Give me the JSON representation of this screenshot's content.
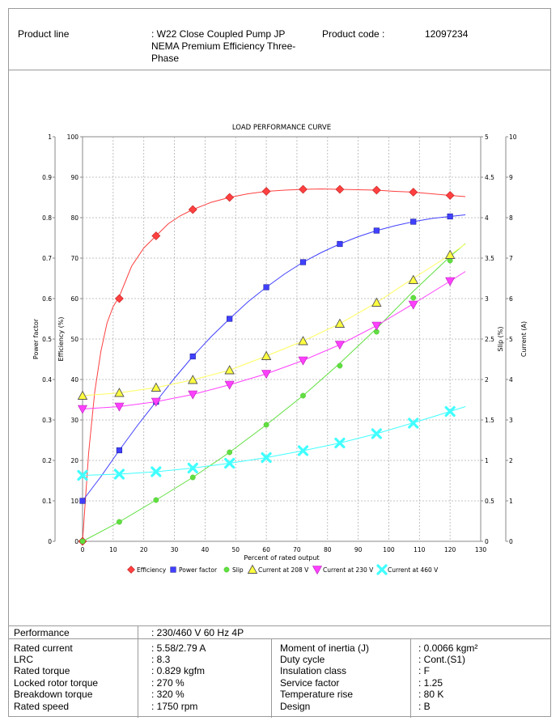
{
  "header": {
    "product_line_label": "Product line",
    "product_line_value_1": ": W22 Close Coupled Pump JP",
    "product_line_value_2": "NEMA Premium Efficiency Three-",
    "product_line_value_3": "Phase",
    "product_code_label": "Product code :",
    "product_code_value": "12097234"
  },
  "chart_data": {
    "type": "line",
    "title": "LOAD PERFORMANCE CURVE",
    "xlabel": "Percent of rated output",
    "xlim": [
      0,
      130
    ],
    "x_ticks": [
      "0",
      "10",
      "20",
      "30",
      "40",
      "50",
      "60",
      "70",
      "80",
      "90",
      "100",
      "110",
      "120",
      "130"
    ],
    "axes": {
      "power_factor": {
        "label": "Power factor",
        "range": [
          0,
          1
        ],
        "ticks": [
          "0",
          "0.1",
          "0.2",
          "0.3",
          "0.4",
          "0.5",
          "0.6",
          "0.7",
          "0.8",
          "0.9",
          "1"
        ]
      },
      "efficiency": {
        "label": "Efficiency (%)",
        "range": [
          0,
          100
        ],
        "ticks": [
          "0",
          "10",
          "20",
          "30",
          "40",
          "50",
          "60",
          "70",
          "80",
          "90",
          "100"
        ]
      },
      "slip": {
        "label": "Slip (%)",
        "range": [
          0,
          5
        ],
        "ticks": [
          "0",
          "0.5",
          "1",
          "1.5",
          "2",
          "2.5",
          "3",
          "3.5",
          "4",
          "4.5",
          "5"
        ]
      },
      "current": {
        "label": "Current (A)",
        "range": [
          0,
          10
        ],
        "ticks": [
          "0",
          "1",
          "2",
          "3",
          "4",
          "5",
          "6",
          "7",
          "8",
          "9",
          "10"
        ]
      }
    },
    "grid": true,
    "legend_position": "bottom",
    "series": [
      {
        "name": "Efficiency",
        "axis": "efficiency",
        "marker": "diamond",
        "color": "#ff4040",
        "x": [
          0,
          12,
          24,
          36,
          48,
          60,
          72,
          84,
          96,
          108,
          120
        ],
        "y": [
          0,
          60,
          75.5,
          82,
          85,
          86.5,
          87,
          87,
          86.8,
          86.3,
          85.5
        ],
        "line_x": [
          0,
          2,
          4,
          6,
          8,
          10,
          12,
          16,
          20,
          24,
          28,
          32,
          36,
          42,
          48,
          54,
          60,
          66,
          72,
          78,
          84,
          90,
          96,
          102,
          108,
          114,
          120,
          125
        ],
        "line_y": [
          0,
          22,
          37,
          47,
          54,
          58,
          60.5,
          68,
          72.5,
          75.5,
          78.5,
          80.5,
          82,
          83.8,
          85,
          85.9,
          86.5,
          86.8,
          87,
          87.1,
          87,
          86.9,
          86.8,
          86.5,
          86.3,
          85.9,
          85.5,
          85.2
        ]
      },
      {
        "name": "Power factor",
        "axis": "power_factor",
        "marker": "square",
        "color": "#4040ff",
        "x": [
          0,
          12,
          24,
          36,
          48,
          60,
          72,
          84,
          96,
          108,
          120
        ],
        "y": [
          0.1,
          0.225,
          0.345,
          0.457,
          0.55,
          0.628,
          0.69,
          0.735,
          0.768,
          0.79,
          0.803
        ],
        "line_x": [
          0,
          6,
          12,
          18,
          24,
          30,
          36,
          42,
          48,
          54,
          60,
          66,
          72,
          78,
          84,
          90,
          96,
          102,
          108,
          114,
          120,
          125
        ],
        "line_y": [
          0.1,
          0.16,
          0.225,
          0.287,
          0.345,
          0.403,
          0.457,
          0.506,
          0.55,
          0.592,
          0.628,
          0.661,
          0.69,
          0.714,
          0.735,
          0.753,
          0.768,
          0.78,
          0.79,
          0.798,
          0.803,
          0.807
        ]
      },
      {
        "name": "Slip",
        "axis": "slip",
        "marker": "circle",
        "color": "#60e040",
        "x": [
          0,
          12,
          24,
          36,
          48,
          60,
          72,
          84,
          96,
          108,
          120
        ],
        "y": [
          0,
          0.24,
          0.51,
          0.79,
          1.1,
          1.44,
          1.8,
          2.17,
          2.59,
          3.01,
          3.47
        ],
        "line_x": [
          0,
          12,
          24,
          36,
          48,
          60,
          72,
          84,
          96,
          108,
          120,
          125
        ],
        "line_y": [
          0,
          0.24,
          0.51,
          0.79,
          1.1,
          1.44,
          1.8,
          2.2,
          2.63,
          3.09,
          3.52,
          3.68
        ]
      },
      {
        "name": "Current at 208 V",
        "axis": "current",
        "marker": "triangle-up",
        "color": "#ffff40",
        "x": [
          0,
          12,
          24,
          36,
          48,
          60,
          72,
          84,
          96,
          108,
          120
        ],
        "y": [
          3.6,
          3.67,
          3.8,
          3.99,
          4.23,
          4.58,
          4.95,
          5.38,
          5.9,
          6.46,
          7.08
        ],
        "line_x": [
          0,
          12,
          24,
          36,
          48,
          60,
          72,
          84,
          96,
          108,
          120,
          125
        ],
        "line_y": [
          3.6,
          3.67,
          3.8,
          3.99,
          4.23,
          4.58,
          4.95,
          5.38,
          5.9,
          6.5,
          7.08,
          7.35
        ]
      },
      {
        "name": "Current at 230 V",
        "axis": "current",
        "marker": "triangle-down",
        "color": "#ff40ff",
        "x": [
          0,
          12,
          24,
          36,
          48,
          60,
          72,
          84,
          96,
          108,
          120
        ],
        "y": [
          3.27,
          3.33,
          3.45,
          3.63,
          3.87,
          4.14,
          4.47,
          4.86,
          5.33,
          5.85,
          6.43
        ],
        "line_x": [
          0,
          12,
          24,
          36,
          48,
          60,
          72,
          84,
          96,
          108,
          120,
          125
        ],
        "line_y": [
          3.27,
          3.33,
          3.45,
          3.63,
          3.87,
          4.14,
          4.47,
          4.86,
          5.33,
          5.87,
          6.43,
          6.67
        ]
      },
      {
        "name": "Current at 460 V",
        "axis": "current",
        "marker": "x",
        "color": "#40ffff",
        "x": [
          0,
          12,
          24,
          36,
          48,
          60,
          72,
          84,
          96,
          108,
          120
        ],
        "y": [
          1.63,
          1.66,
          1.72,
          1.81,
          1.93,
          2.07,
          2.24,
          2.43,
          2.66,
          2.92,
          3.21
        ],
        "line_x": [
          0,
          12,
          24,
          36,
          48,
          60,
          72,
          84,
          96,
          108,
          120,
          125
        ],
        "line_y": [
          1.63,
          1.66,
          1.72,
          1.81,
          1.93,
          2.07,
          2.24,
          2.43,
          2.66,
          2.93,
          3.21,
          3.33
        ]
      }
    ]
  },
  "performance": {
    "label": "Performance",
    "value": ": 230/460 V 60 Hz 4P",
    "left": [
      {
        "label": "Rated current",
        "value": ": 5.58/2.79 A"
      },
      {
        "label": "LRC",
        "value": ": 8.3"
      },
      {
        "label": "Rated torque",
        "value": ": 0.829 kgfm"
      },
      {
        "label": "Locked rotor torque",
        "value": ": 270 %"
      },
      {
        "label": "Breakdown torque",
        "value": ": 320 %"
      },
      {
        "label": "Rated speed",
        "value": ": 1750 rpm"
      }
    ],
    "right": [
      {
        "label": "Moment of inertia (J)",
        "value": ": 0.0066 kgm²"
      },
      {
        "label": "Duty cycle",
        "value": ": Cont.(S1)"
      },
      {
        "label": "Insulation class",
        "value": ": F"
      },
      {
        "label": "Service factor",
        "value": ": 1.25"
      },
      {
        "label": "Temperature rise",
        "value": ": 80 K"
      },
      {
        "label": "Design",
        "value": ": B"
      }
    ]
  }
}
